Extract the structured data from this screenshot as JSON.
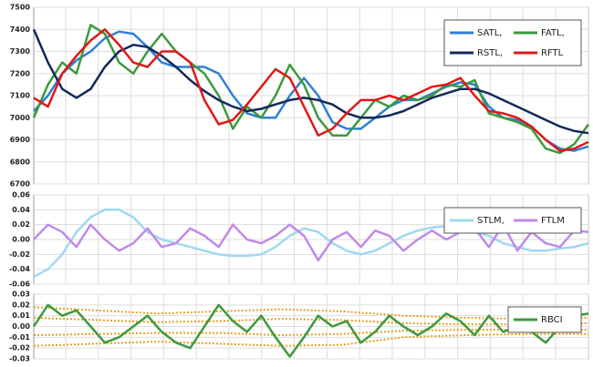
{
  "chart_data": [
    {
      "type": "line",
      "legend": "top right",
      "grid": true,
      "ylim": [
        6700,
        7500
      ],
      "yticks": [
        6700,
        6800,
        6900,
        7000,
        7100,
        7200,
        7300,
        7400,
        7500
      ],
      "series": [
        {
          "name": "SATL,",
          "color": "#2f7fd8",
          "values": [
            7030,
            7100,
            7200,
            7260,
            7300,
            7360,
            7390,
            7380,
            7320,
            7250,
            7230,
            7230,
            7230,
            7200,
            7100,
            7020,
            7000,
            7000,
            7100,
            7180,
            7100,
            6980,
            6950,
            6950,
            7000,
            7050,
            7080,
            7080,
            7110,
            7140,
            7160,
            7150,
            7050,
            7000,
            6990,
            6960,
            6900,
            6860,
            6850,
            6870
          ]
        },
        {
          "name": "FATL,",
          "color": "#3c9a3c",
          "values": [
            7000,
            7150,
            7250,
            7200,
            7420,
            7380,
            7250,
            7200,
            7300,
            7380,
            7300,
            7250,
            7200,
            7100,
            6950,
            7050,
            7000,
            7100,
            7240,
            7150,
            7000,
            6920,
            6920,
            7000,
            7080,
            7050,
            7100,
            7080,
            7100,
            7150,
            7140,
            7170,
            7020,
            7000,
            6980,
            6950,
            6860,
            6840,
            6880,
            6970
          ]
        },
        {
          "name": "RSTL,",
          "color": "#14285a",
          "values": [
            7400,
            7250,
            7130,
            7090,
            7130,
            7230,
            7300,
            7330,
            7320,
            7280,
            7230,
            7170,
            7120,
            7080,
            7050,
            7030,
            7040,
            7060,
            7080,
            7090,
            7080,
            7060,
            7020,
            7000,
            7000,
            7010,
            7030,
            7060,
            7090,
            7110,
            7130,
            7130,
            7110,
            7080,
            7050,
            7020,
            6990,
            6960,
            6940,
            6930
          ]
        },
        {
          "name": "RFTL",
          "color": "#e01818",
          "values": [
            7090,
            7050,
            7200,
            7280,
            7350,
            7400,
            7330,
            7250,
            7230,
            7300,
            7300,
            7250,
            7080,
            6970,
            6990,
            7060,
            7140,
            7220,
            7180,
            7050,
            6920,
            6950,
            7020,
            7080,
            7080,
            7100,
            7080,
            7110,
            7140,
            7150,
            7180,
            7100,
            7030,
            7020,
            7000,
            6960,
            6900,
            6850,
            6860,
            6890
          ]
        }
      ]
    },
    {
      "type": "line",
      "legend": "top right",
      "grid": true,
      "ylim": [
        -0.06,
        0.06
      ],
      "yticks": [
        -0.06,
        -0.04,
        -0.02,
        {
          "value": 0,
          "label": "0.00"
        },
        0.02,
        0.04,
        0.06
      ],
      "series": [
        {
          "name": "STLM,",
          "color": "#9fd8f0",
          "values": [
            -0.05,
            -0.04,
            -0.02,
            0.01,
            0.03,
            0.04,
            0.04,
            0.03,
            0.01,
            0.0,
            -0.005,
            -0.01,
            -0.015,
            -0.02,
            -0.022,
            -0.022,
            -0.02,
            -0.01,
            0.005,
            0.015,
            0.01,
            -0.005,
            -0.015,
            -0.02,
            -0.015,
            -0.005,
            0.005,
            0.012,
            0.016,
            0.018,
            0.015,
            0.01,
            0.005,
            -0.005,
            -0.01,
            -0.015,
            -0.015,
            -0.012,
            -0.01,
            -0.005
          ]
        },
        {
          "name": "FTLM",
          "color": "#c08ae8",
          "values": [
            0.0,
            0.02,
            0.01,
            -0.01,
            0.02,
            0.0,
            -0.015,
            -0.005,
            0.015,
            -0.01,
            -0.005,
            0.015,
            0.005,
            -0.01,
            0.02,
            0.0,
            -0.005,
            0.005,
            0.02,
            0.005,
            -0.028,
            0.0,
            0.01,
            -0.01,
            0.012,
            0.005,
            -0.015,
            0.0,
            0.012,
            0.0,
            0.01,
            0.015,
            -0.01,
            0.02,
            -0.015,
            0.01,
            -0.005,
            -0.01,
            0.012,
            0.01
          ]
        }
      ]
    },
    {
      "type": "line",
      "legend": "top right",
      "grid": true,
      "ylim": [
        -0.03,
        0.03
      ],
      "yticks": [
        -0.03,
        -0.02,
        -0.01,
        {
          "value": 0,
          "label": "0.00"
        },
        0.01,
        0.02,
        0.03
      ],
      "series": [
        {
          "color": "#e8a020",
          "style": "dotted",
          "values": [
            0.018,
            0.015,
            0.012,
            0.014,
            0.016,
            0.014,
            0.01,
            0.008,
            0.007,
            0.008
          ]
        },
        {
          "color": "#e8a020",
          "style": "dotted",
          "values": [
            0.008,
            0.006,
            0.004,
            0.005,
            0.007,
            0.006,
            0.003,
            0.002,
            0.002,
            0.003
          ]
        },
        {
          "color": "#e8a020",
          "style": "dotted",
          "values": [
            -0.008,
            -0.007,
            -0.006,
            -0.006,
            -0.008,
            -0.007,
            -0.004,
            -0.003,
            -0.003,
            -0.003
          ]
        },
        {
          "color": "#e8a020",
          "style": "dotted",
          "values": [
            -0.018,
            -0.016,
            -0.014,
            -0.016,
            -0.018,
            -0.017,
            -0.01,
            -0.008,
            -0.007,
            -0.007
          ]
        },
        {
          "name": "RBCI",
          "color": "#3c9a3c",
          "values": [
            0.0,
            0.02,
            0.01,
            0.015,
            0.0,
            -0.015,
            -0.01,
            0.0,
            0.01,
            -0.005,
            -0.015,
            -0.02,
            0.0,
            0.02,
            0.005,
            -0.005,
            0.01,
            -0.01,
            -0.028,
            -0.01,
            0.01,
            0.0,
            0.005,
            -0.015,
            -0.005,
            0.01,
            0.0,
            -0.008,
            0.0,
            0.012,
            0.005,
            -0.008,
            0.01,
            -0.005,
            0.0,
            -0.005,
            -0.015,
            0.0,
            0.01,
            0.012
          ]
        }
      ]
    }
  ]
}
